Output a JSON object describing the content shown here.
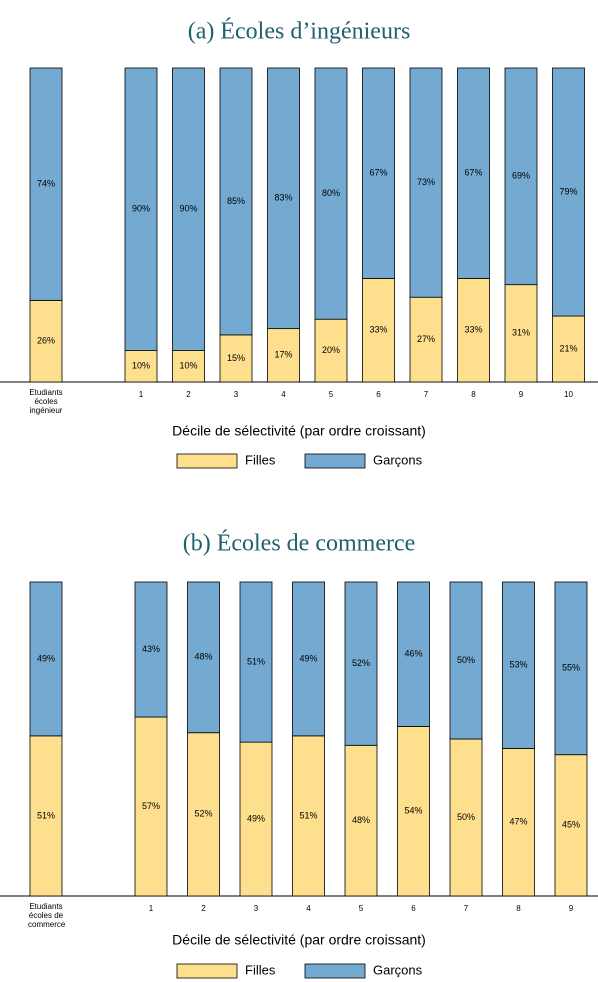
{
  "chart_data": [
    {
      "type": "bar",
      "stacked": true,
      "title": "(a) Écoles d’ingénieurs",
      "xlabel": "Décile de sélectivité (par ordre croissant)",
      "categories": [
        "Etudiants écoles ingénieur",
        "1",
        "2",
        "3",
        "4",
        "5",
        "6",
        "7",
        "8",
        "9",
        "10"
      ],
      "ylim": [
        0,
        100
      ],
      "series": [
        {
          "name": "Filles",
          "color": "#fddf8e",
          "values": [
            26,
            10,
            10,
            15,
            17,
            20,
            33,
            27,
            33,
            31,
            21
          ],
          "value_labels": [
            "26%",
            "10%",
            "10%",
            "15%",
            "17%",
            "20%",
            "33%",
            "27%",
            "33%",
            "31%",
            "21%"
          ]
        },
        {
          "name": "Garçons",
          "color": "#74aad2",
          "values": [
            74,
            90,
            90,
            85,
            83,
            80,
            67,
            73,
            67,
            69,
            79
          ],
          "value_labels": [
            "74%",
            "90%",
            "90%",
            "85%",
            "83%",
            "80%",
            "67%",
            "73%",
            "67%",
            "69%",
            "79%"
          ]
        }
      ]
    },
    {
      "type": "bar",
      "stacked": true,
      "title": "(b) Écoles de commerce",
      "xlabel": "Décile de sélectivité (par ordre croissant)",
      "categories": [
        "Etudiants écoles de commerce",
        "1",
        "2",
        "3",
        "4",
        "5",
        "6",
        "7",
        "8",
        "9"
      ],
      "ylim": [
        0,
        100
      ],
      "series": [
        {
          "name": "Filles",
          "color": "#fddf8e",
          "values": [
            51,
            57,
            52,
            49,
            51,
            48,
            54,
            50,
            47,
            45
          ],
          "value_labels": [
            "51%",
            "57%",
            "52%",
            "49%",
            "51%",
            "48%",
            "54%",
            "50%",
            "47%",
            "45%"
          ]
        },
        {
          "name": "Garçons",
          "color": "#74aad2",
          "values": [
            49,
            43,
            48,
            51,
            49,
            52,
            46,
            50,
            53,
            55
          ],
          "value_labels": [
            "49%",
            "43%",
            "48%",
            "51%",
            "49%",
            "52%",
            "46%",
            "50%",
            "53%",
            "55%"
          ]
        }
      ]
    }
  ]
}
